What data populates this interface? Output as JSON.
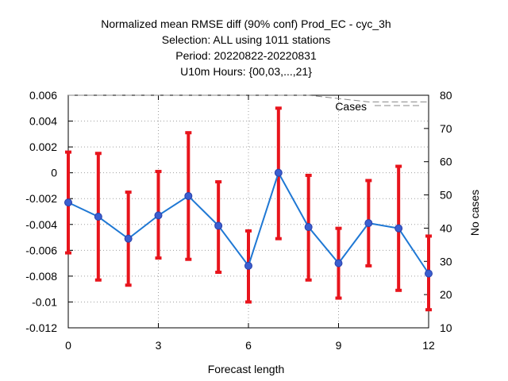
{
  "chart_data": {
    "type": "line",
    "title_lines": [
      "Normalized mean RMSE diff (90% conf) Prod_EC - cyc_3h",
      "Selection: ALL using  1011 stations",
      "Period: 20220822-20220831",
      "U10m   Hours: {00,03,...,21}"
    ],
    "xlabel": "Forecast length",
    "y2label": "No cases",
    "xlim": [
      0,
      12
    ],
    "ylim": [
      -0.012,
      0.006
    ],
    "y2lim": [
      10,
      80
    ],
    "xticks": [
      0,
      3,
      6,
      9,
      12
    ],
    "xtick_labels": [
      "0",
      "3",
      "6",
      "9",
      "12"
    ],
    "yticks": [
      0.006,
      0.004,
      0.002,
      0,
      -0.002,
      -0.004,
      -0.006,
      -0.008,
      -0.01,
      -0.012
    ],
    "ytick_labels": [
      "0.006",
      "0.004",
      "0.002",
      "0",
      "-0.002",
      "-0.004",
      "-0.006",
      "-0.008",
      "-0.01",
      "-0.012"
    ],
    "y2ticks": [
      80,
      70,
      60,
      50,
      40,
      30,
      20,
      10
    ],
    "y2tick_labels": [
      "80",
      "70",
      "60",
      "50",
      "40",
      "30",
      "20",
      "10"
    ],
    "grid": true,
    "series": [
      {
        "x": [
          0,
          1,
          2,
          3,
          4,
          5,
          6,
          7,
          8,
          9,
          10,
          11,
          12
        ],
        "values": [
          -0.0023,
          -0.0034,
          -0.0051,
          -0.0033,
          -0.0018,
          -0.0041,
          -0.0072,
          0.0,
          -0.0042,
          -0.007,
          -0.0039,
          -0.0043,
          -0.0078
        ],
        "err_low": [
          -0.0062,
          -0.0083,
          -0.0087,
          -0.0066,
          -0.0067,
          -0.0077,
          -0.01,
          -0.0051,
          -0.0083,
          -0.0097,
          -0.0072,
          -0.0091,
          -0.0106
        ],
        "err_high": [
          0.0016,
          0.0015,
          -0.0015,
          0.0001,
          0.0031,
          -0.0007,
          -0.0045,
          0.005,
          -0.0002,
          -0.0043,
          -0.0006,
          0.0005,
          -0.0049
        ],
        "line_color": "#1f78d4",
        "marker_color": "#3a5fd0",
        "errorbar_color": "#e8141c"
      },
      {
        "name": "Cases",
        "axis": "right",
        "x": [
          0,
          1,
          2,
          3,
          4,
          5,
          6,
          7,
          8,
          9,
          10,
          11,
          12
        ],
        "values": [
          80,
          80,
          80,
          80,
          80,
          80,
          80,
          80,
          80,
          79,
          78,
          78,
          78
        ],
        "line_color": "#888888",
        "dash": true
      }
    ],
    "legend": {
      "label": "Cases",
      "position": "top-right"
    }
  }
}
